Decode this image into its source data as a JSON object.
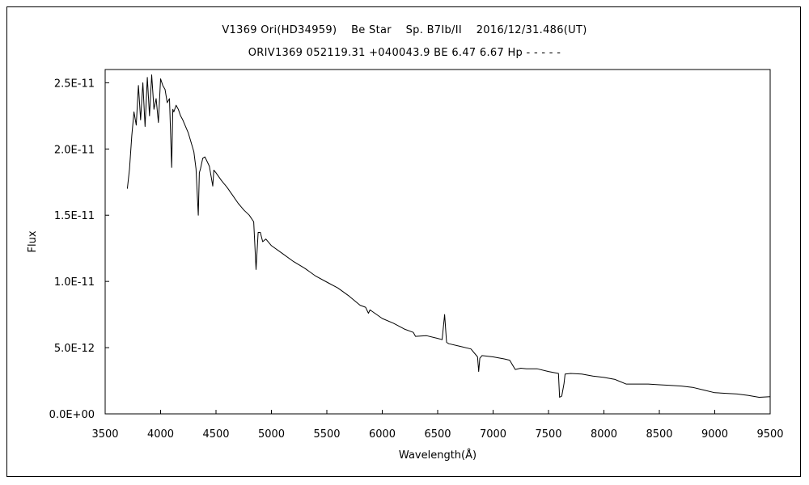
{
  "chart_data": {
    "type": "line",
    "title": "V1369 Ori(HD34959)　 Be Star　 Sp. B7Ib/II　 2016/12/31.486(UT)",
    "subtitle": "ORIV1369 052119.31 +040043.9 BE 6.47 6.67 Hp - - - - -",
    "xlabel": "Wavelength(Å)",
    "ylabel": "Flux",
    "xlim": [
      3500,
      9500
    ],
    "ylim": [
      0,
      2.6e-11
    ],
    "x_ticks": [
      3500,
      4000,
      4500,
      5000,
      5500,
      6000,
      6500,
      7000,
      7500,
      8000,
      8500,
      9000,
      9500
    ],
    "x_tick_labels": [
      "3500",
      "4000",
      "4500",
      "5000",
      "5500",
      "6000",
      "6500",
      "7000",
      "7500",
      "8000",
      "8500",
      "9000",
      "9500"
    ],
    "y_ticks": [
      0,
      5e-12,
      1e-11,
      1.5e-11,
      2e-11,
      2.5e-11
    ],
    "y_tick_labels": [
      "0.0E+00",
      "5.0E-12",
      "1.0E-11",
      "1.5E-11",
      "2.0E-11",
      "2.5E-11"
    ],
    "grid": false,
    "series": [
      {
        "color": "#000000",
        "x": [
          3700,
          3720,
          3740,
          3760,
          3780,
          3800,
          3820,
          3840,
          3860,
          3880,
          3900,
          3920,
          3940,
          3960,
          3980,
          4000,
          4020,
          4040,
          4060,
          4080,
          4100,
          4110,
          4120,
          4140,
          4160,
          4180,
          4200,
          4250,
          4300,
          4320,
          4340,
          4350,
          4360,
          4380,
          4400,
          4440,
          4471,
          4480,
          4500,
          4550,
          4600,
          4650,
          4700,
          4750,
          4800,
          4840,
          4861,
          4880,
          4900,
          4921,
          4950,
          5000,
          5100,
          5200,
          5300,
          5400,
          5500,
          5600,
          5700,
          5800,
          5850,
          5875,
          5890,
          5950,
          6000,
          6100,
          6200,
          6280,
          6300,
          6400,
          6500,
          6540,
          6563,
          6580,
          6600,
          6700,
          6800,
          6860,
          6870,
          6880,
          6900,
          7000,
          7100,
          7150,
          7200,
          7250,
          7300,
          7400,
          7500,
          7590,
          7600,
          7620,
          7640,
          7650,
          7700,
          7800,
          7900,
          8000,
          8100,
          8200,
          8300,
          8400,
          8500,
          8600,
          8700,
          8800,
          8900,
          9000,
          9100,
          9200,
          9300,
          9400,
          9500
        ],
        "y": [
          1.7e-11,
          1.85e-11,
          2.1e-11,
          2.28e-11,
          2.18e-11,
          2.48e-11,
          2.22e-11,
          2.5e-11,
          2.17e-11,
          2.54e-11,
          2.25e-11,
          2.56e-11,
          2.3e-11,
          2.38e-11,
          2.2e-11,
          2.53e-11,
          2.48e-11,
          2.45e-11,
          2.35e-11,
          2.38e-11,
          1.86e-11,
          2.3e-11,
          2.28e-11,
          2.33e-11,
          2.3e-11,
          2.25e-11,
          2.22e-11,
          2.12e-11,
          1.98e-11,
          1.85e-11,
          1.5e-11,
          1.82e-11,
          1.85e-11,
          1.93e-11,
          1.94e-11,
          1.87e-11,
          1.72e-11,
          1.84e-11,
          1.82e-11,
          1.76e-11,
          1.71e-11,
          1.65e-11,
          1.59e-11,
          1.54e-11,
          1.5e-11,
          1.45e-11,
          1.09e-11,
          1.37e-11,
          1.37e-11,
          1.3e-11,
          1.32e-11,
          1.27e-11,
          1.21e-11,
          1.15e-11,
          1.1e-11,
          1.04e-11,
          9.95e-12,
          9.5e-12,
          8.9e-12,
          8.2e-12,
          8.05e-12,
          7.6e-12,
          7.85e-12,
          7.5e-12,
          7.2e-12,
          6.85e-12,
          6.4e-12,
          6.15e-12,
          5.85e-12,
          5.9e-12,
          5.7e-12,
          5.6e-12,
          7.5e-12,
          5.4e-12,
          5.3e-12,
          5.1e-12,
          4.9e-12,
          4.3e-12,
          3.2e-12,
          4.2e-12,
          4.4e-12,
          4.3e-12,
          4.15e-12,
          4.05e-12,
          3.35e-12,
          3.45e-12,
          3.4e-12,
          3.4e-12,
          3.2e-12,
          3.05e-12,
          1.25e-12,
          1.35e-12,
          2.3e-12,
          3e-12,
          3.05e-12,
          3e-12,
          2.85e-12,
          2.75e-12,
          2.6e-12,
          2.25e-12,
          2.25e-12,
          2.25e-12,
          2.2e-12,
          2.15e-12,
          2.1e-12,
          2e-12,
          1.8e-12,
          1.6e-12,
          1.55e-12,
          1.5e-12,
          1.4e-12,
          1.25e-12,
          1.3e-12
        ]
      }
    ]
  }
}
